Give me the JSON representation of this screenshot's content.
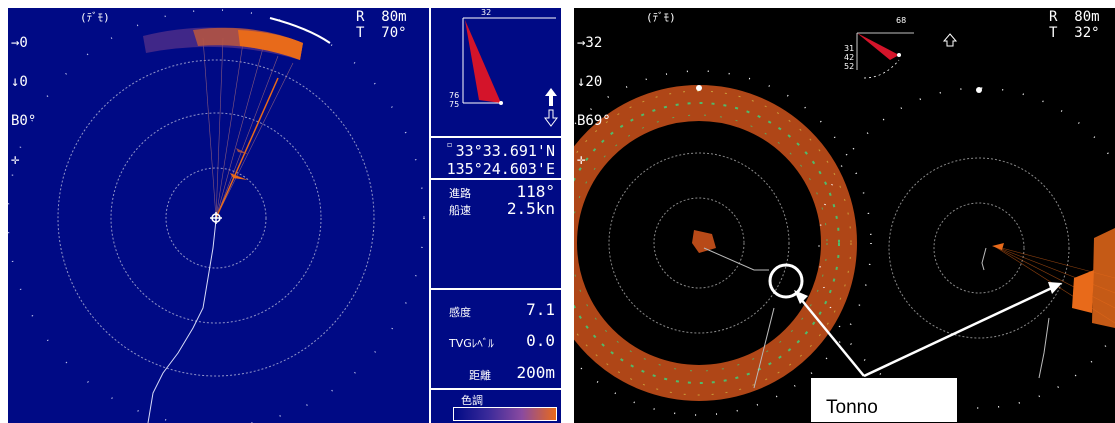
{
  "left_screen": {
    "top_left": [
      "→0",
      "↓0",
      "B0°",
      "✛"
    ],
    "mode": "(ﾃﾞﾓ)",
    "range": "R  80m",
    "tilt": "T  70°",
    "mini_scale_top": "32",
    "mini_scale_left1": "76",
    "mini_scale_left2": "75",
    "position_lat": "33°33.691'N",
    "position_lon": "135°24.603'E",
    "course_label": "進路",
    "course_value": "118°",
    "speed_label": "船速",
    "speed_value": "2.5kn",
    "sensitivity_label": "感度",
    "sensitivity_value": "7.1",
    "tvg_label": "TVGﾚﾍﾞﾙ",
    "tvg_value": "0.0",
    "distance_label": "距離",
    "distance_value": "200m",
    "color_label": "色調",
    "colors": {
      "background": "#000a85",
      "echo": "#e86a1a"
    }
  },
  "right_screen": {
    "top_left": [
      "→32",
      "↓20",
      "B69°",
      "✛"
    ],
    "mode": "(ﾃﾞﾓ)",
    "range": "R  80m",
    "tilt": "T  32°",
    "mini_scale_top": "68",
    "mini_scale_left": [
      "31",
      "42",
      "52"
    ],
    "callout_label": "Tonno",
    "colors": {
      "background": "#000000",
      "echo": "#b84a18",
      "echo_green": "#3fd07a"
    }
  }
}
